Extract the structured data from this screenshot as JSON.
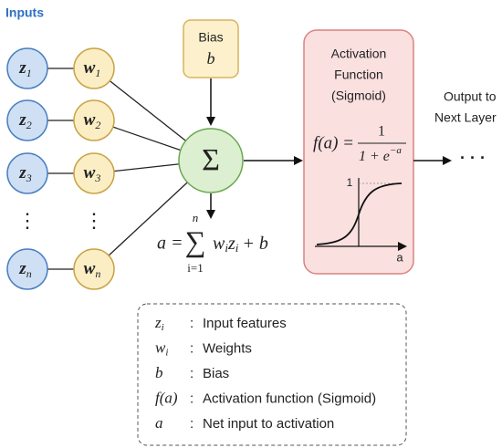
{
  "inputs_label": "Inputs",
  "inputs": [
    {
      "symbol": "z",
      "sub": "1"
    },
    {
      "symbol": "z",
      "sub": "2"
    },
    {
      "symbol": "z",
      "sub": "3"
    },
    {
      "symbol": "z",
      "sub": "n"
    }
  ],
  "weights": [
    {
      "symbol": "w",
      "sub": "1"
    },
    {
      "symbol": "w",
      "sub": "2"
    },
    {
      "symbol": "w",
      "sub": "3"
    },
    {
      "symbol": "w",
      "sub": "n"
    }
  ],
  "vertical_ellipsis": "⋮",
  "bias": {
    "title": "Bias",
    "symbol": "b"
  },
  "summation": "Σ",
  "net_input_formula": {
    "lhs": "a =",
    "sum": "∑",
    "upper": "n",
    "lower": "i=1",
    "w": "w",
    "w_sub": "i",
    "z": "z",
    "z_sub": "i",
    "rest": "+ b"
  },
  "activation": {
    "title_lines": [
      "Activation",
      "Function",
      "(Sigmoid)"
    ],
    "formula": {
      "lhs": "f(a) =",
      "numerator": "1",
      "denominator": "1 + e",
      "exponent": "−a"
    },
    "graph": {
      "y_label": "1",
      "x_label": "a"
    }
  },
  "output": {
    "lines": [
      "Output to",
      "Next Layer"
    ],
    "ellipsis": "· · ·"
  },
  "legend": {
    "separator": ":",
    "rows": [
      {
        "symbol": "z",
        "sub": "i",
        "description": "Input features"
      },
      {
        "symbol": "w",
        "sub": "i",
        "description": "Weights"
      },
      {
        "symbol": "b",
        "sub": "",
        "description": "Bias"
      },
      {
        "symbol": "f(a)",
        "sub": "",
        "description": "Activation function (Sigmoid)"
      },
      {
        "symbol": "a",
        "sub": "",
        "description": "Net input to activation"
      }
    ]
  }
}
